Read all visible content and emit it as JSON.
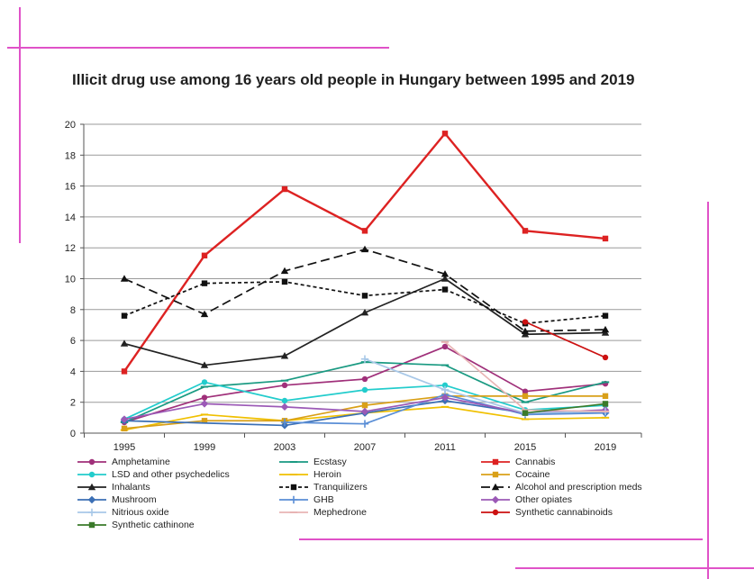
{
  "chart_data": {
    "type": "line",
    "title": "Illicit drug use among 16 years old people in Hungary between 1995 and 2019",
    "x": [
      "1995",
      "1999",
      "2003",
      "2007",
      "2011",
      "2015",
      "2019"
    ],
    "ylim": [
      0,
      20
    ],
    "yticks": [
      0,
      2,
      4,
      6,
      8,
      10,
      12,
      14,
      16,
      18,
      20
    ],
    "grid": true,
    "legend_position": "bottom",
    "series": [
      {
        "name": "Amphetamine",
        "color": "#a0307a",
        "dash": "",
        "marker": "circle",
        "values": [
          0.7,
          2.3,
          3.1,
          3.5,
          5.6,
          2.7,
          3.2
        ]
      },
      {
        "name": "Ecstasy",
        "color": "#1a9a82",
        "dash": "",
        "marker": "dash",
        "values": [
          0.7,
          3.0,
          3.4,
          4.6,
          4.4,
          2.0,
          3.3
        ]
      },
      {
        "name": "Cannabis",
        "color": "#dd2222",
        "dash": "",
        "marker": "square",
        "values": [
          4.0,
          11.5,
          15.8,
          13.1,
          19.4,
          13.1,
          12.6
        ]
      },
      {
        "name": "LSD and other psychedelics",
        "color": "#22cccc",
        "dash": "",
        "marker": "circle",
        "values": [
          0.9,
          3.3,
          2.1,
          2.8,
          3.1,
          1.5,
          1.8
        ]
      },
      {
        "name": "Heroin",
        "color": "#f0c000",
        "dash": "",
        "marker": "dash",
        "values": [
          0.2,
          1.2,
          0.8,
          1.3,
          1.7,
          0.9,
          1.0
        ]
      },
      {
        "name": "Cocaine",
        "color": "#d9a018",
        "dash": "",
        "marker": "square",
        "values": [
          0.3,
          0.8,
          0.8,
          1.8,
          2.4,
          2.4,
          2.4
        ]
      },
      {
        "name": "Inhalants",
        "color": "#222222",
        "dash": "",
        "marker": "triangle",
        "values": [
          5.8,
          4.4,
          5.0,
          7.8,
          10.0,
          6.4,
          6.5
        ]
      },
      {
        "name": "Tranquilizers",
        "color": "#111111",
        "dash": "4 3",
        "marker": "square",
        "values": [
          7.6,
          9.7,
          9.8,
          8.9,
          9.3,
          7.1,
          7.6
        ]
      },
      {
        "name": "Alcohol and prescription meds",
        "color": "#111111",
        "dash": "10 5",
        "marker": "triangle",
        "values": [
          10.0,
          7.7,
          10.5,
          11.9,
          10.3,
          6.6,
          6.7
        ]
      },
      {
        "name": "Mushroom",
        "color": "#3b6fb5",
        "dash": "",
        "marker": "diamond",
        "values": [
          0.8,
          null,
          0.5,
          1.3,
          2.1,
          1.3,
          1.3
        ]
      },
      {
        "name": "GHB",
        "color": "#5a8ed6",
        "dash": "",
        "marker": "plus",
        "values": [
          null,
          null,
          0.7,
          0.6,
          2.5,
          1.2,
          1.3
        ]
      },
      {
        "name": "Other opiates",
        "color": "#9b59b6",
        "dash": "",
        "marker": "diamond",
        "values": [
          0.9,
          1.9,
          1.7,
          1.4,
          2.3,
          1.3,
          1.5
        ]
      },
      {
        "name": "Nitrious oxide",
        "color": "#a8c8e8",
        "dash": "",
        "marker": "plus",
        "values": [
          null,
          null,
          null,
          4.8,
          2.8,
          1.3,
          1.4
        ]
      },
      {
        "name": "Mephedrone",
        "color": "#e8b4b4",
        "dash": "",
        "marker": "dash",
        "values": [
          null,
          null,
          null,
          null,
          5.9,
          1.5,
          1.4
        ]
      },
      {
        "name": "Synthetic cannabinoids",
        "color": "#cc1111",
        "dash": "",
        "marker": "circle",
        "values": [
          null,
          null,
          null,
          null,
          null,
          7.2,
          4.9
        ]
      },
      {
        "name": "Synthetic cathinone",
        "color": "#3a7a2a",
        "dash": "",
        "marker": "square",
        "values": [
          null,
          null,
          null,
          null,
          null,
          1.3,
          1.9
        ]
      }
    ]
  }
}
